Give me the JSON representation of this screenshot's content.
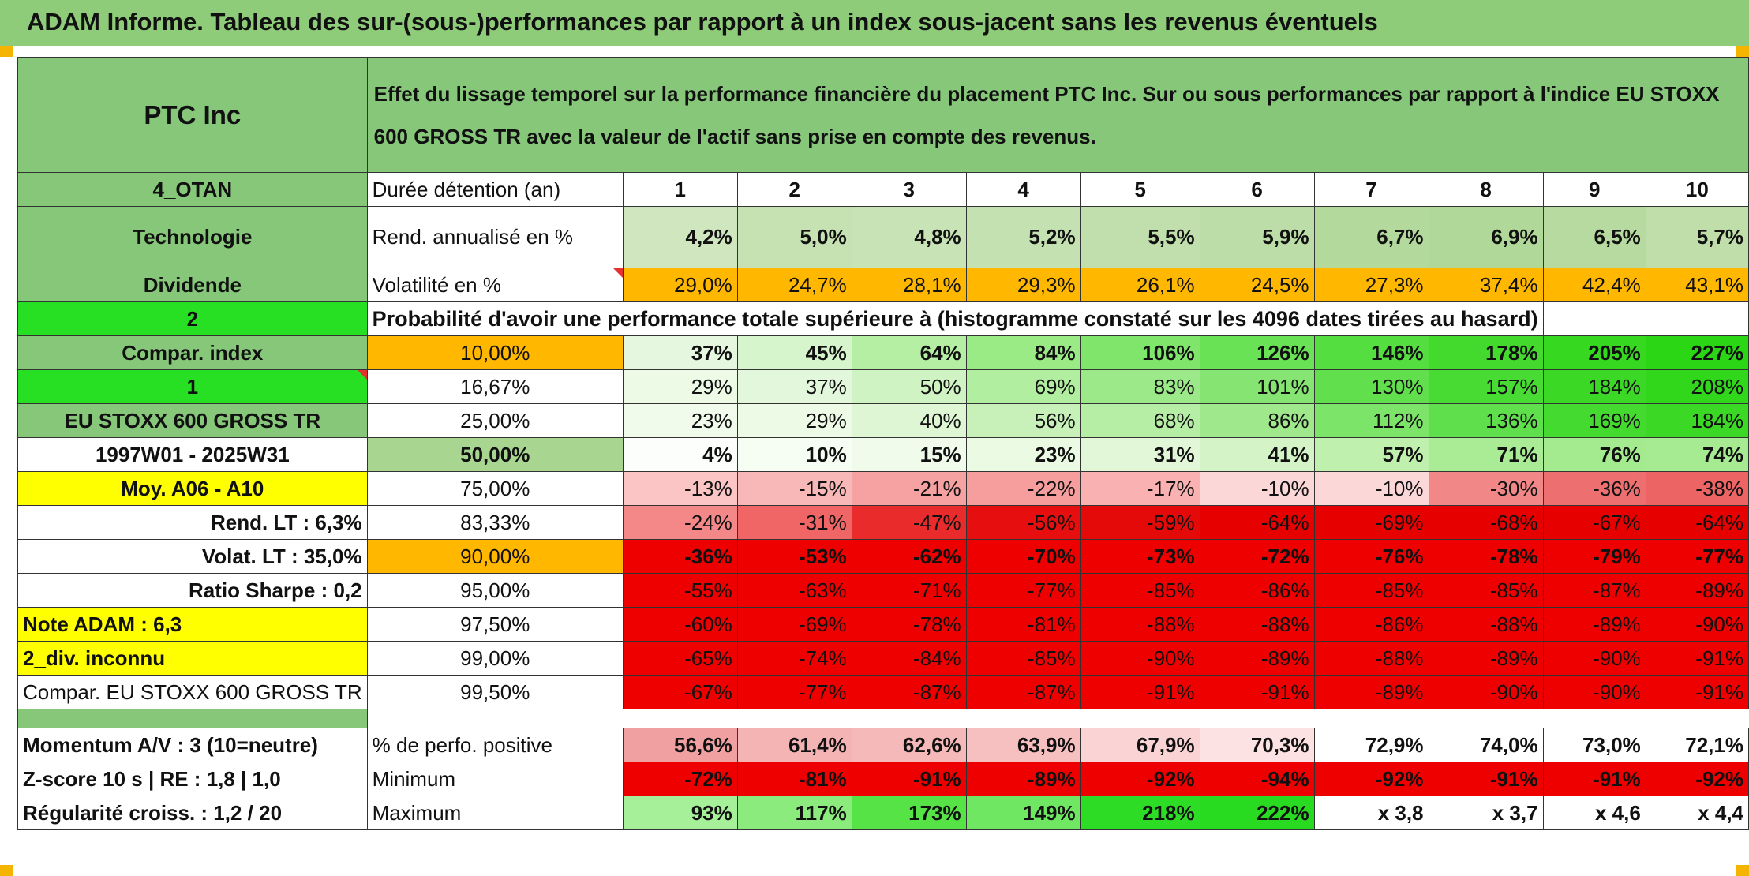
{
  "title": "ADAM Informe. Tableau des sur-(sous-)performances par rapport à un index sous-jacent sans les revenus éventuels",
  "header": {
    "company": "PTC Inc",
    "description": "Effet du lissage temporel sur la performance financière du placement PTC Inc. Sur ou sous performances par rapport à l'indice EU STOXX 600 GROSS TR avec la valeur de l'actif sans prise en compte des revenus."
  },
  "left_labels": {
    "otan": "4_OTAN",
    "sector": "Technologie",
    "dividend": "Dividende",
    "dividend_code": "2",
    "compar_index": "Compar. index",
    "compar_code": "1",
    "index_name": "EU STOXX 600 GROSS TR",
    "period": "1997W01 - 2025W31",
    "moy": "Moy. A06 - A10",
    "rend_lt": "Rend. LT :   6,3%",
    "volat_lt": "Volat. LT :   35,0%",
    "sharpe": "Ratio Sharpe :   0,2",
    "note": "Note ADAM : 6,3",
    "div": "2_div. inconnu",
    "compar_full": "Compar. EU STOXX 600 GROSS TR",
    "momentum": "Momentum A/V : 3 (10=neutre)",
    "zscore": "Z-score 10 s | RE : 1,8 | 1,0",
    "regularite": "Régularité croiss. : 1,2 / 20"
  },
  "row_labels": {
    "duree": "Durée détention (an)",
    "rend": "Rend. annualisé en %",
    "volat": "Volatilité en %",
    "proba": "Probabilité d'avoir une performance totale supérieure à (histogramme constaté sur les 4096 dates tirées au hasard)",
    "positive": "% de perfo. positive",
    "minimum": "Minimum",
    "maximum": "Maximum"
  },
  "years": [
    "1",
    "2",
    "3",
    "4",
    "5",
    "6",
    "7",
    "8",
    "9",
    "10"
  ],
  "rend": [
    "4,2%",
    "5,0%",
    "4,8%",
    "5,2%",
    "5,5%",
    "5,9%",
    "6,7%",
    "6,9%",
    "6,5%",
    "5,7%"
  ],
  "volat": [
    "29,0%",
    "24,7%",
    "28,1%",
    "29,3%",
    "26,1%",
    "24,5%",
    "27,3%",
    "37,4%",
    "42,4%",
    "43,1%"
  ],
  "percentiles": [
    {
      "p": "10,00%",
      "values": [
        "37%",
        "45%",
        "64%",
        "84%",
        "106%",
        "126%",
        "146%",
        "178%",
        "205%",
        "227%"
      ]
    },
    {
      "p": "16,67%",
      "values": [
        "29%",
        "37%",
        "50%",
        "69%",
        "83%",
        "101%",
        "130%",
        "157%",
        "184%",
        "208%"
      ]
    },
    {
      "p": "25,00%",
      "values": [
        "23%",
        "29%",
        "40%",
        "56%",
        "68%",
        "86%",
        "112%",
        "136%",
        "169%",
        "184%"
      ]
    },
    {
      "p": "50,00%",
      "values": [
        "4%",
        "10%",
        "15%",
        "23%",
        "31%",
        "41%",
        "57%",
        "71%",
        "76%",
        "74%"
      ]
    },
    {
      "p": "75,00%",
      "values": [
        "-13%",
        "-15%",
        "-21%",
        "-22%",
        "-17%",
        "-10%",
        "-10%",
        "-30%",
        "-36%",
        "-38%"
      ]
    },
    {
      "p": "83,33%",
      "values": [
        "-24%",
        "-31%",
        "-47%",
        "-56%",
        "-59%",
        "-64%",
        "-69%",
        "-68%",
        "-67%",
        "-64%"
      ]
    },
    {
      "p": "90,00%",
      "values": [
        "-36%",
        "-53%",
        "-62%",
        "-70%",
        "-73%",
        "-72%",
        "-76%",
        "-78%",
        "-79%",
        "-77%"
      ]
    },
    {
      "p": "95,00%",
      "values": [
        "-55%",
        "-63%",
        "-71%",
        "-77%",
        "-85%",
        "-86%",
        "-85%",
        "-85%",
        "-87%",
        "-89%"
      ]
    },
    {
      "p": "97,50%",
      "values": [
        "-60%",
        "-69%",
        "-78%",
        "-81%",
        "-88%",
        "-88%",
        "-86%",
        "-88%",
        "-89%",
        "-90%"
      ]
    },
    {
      "p": "99,00%",
      "values": [
        "-65%",
        "-74%",
        "-84%",
        "-85%",
        "-90%",
        "-89%",
        "-88%",
        "-89%",
        "-90%",
        "-91%"
      ]
    },
    {
      "p": "99,50%",
      "values": [
        "-67%",
        "-77%",
        "-87%",
        "-87%",
        "-91%",
        "-91%",
        "-89%",
        "-90%",
        "-90%",
        "-91%"
      ]
    }
  ],
  "positive": [
    "56,6%",
    "61,4%",
    "62,6%",
    "63,9%",
    "67,9%",
    "70,3%",
    "72,9%",
    "74,0%",
    "73,0%",
    "72,1%"
  ],
  "minimum": [
    "-72%",
    "-81%",
    "-91%",
    "-89%",
    "-92%",
    "-94%",
    "-92%",
    "-91%",
    "-91%",
    "-92%"
  ],
  "maximum": [
    "93%",
    "117%",
    "173%",
    "149%",
    "218%",
    "222%",
    "x 3,8",
    "x 3,7",
    "x 4,6",
    "x 4,4"
  ],
  "colors": {
    "title_bg": "#8fcc7a",
    "label_green": "#86c779",
    "bright_green": "#27e024",
    "yellow": "#ffff00",
    "orange": "#ffb700",
    "red": "#ee0000",
    "text_red": "#cc1111"
  }
}
